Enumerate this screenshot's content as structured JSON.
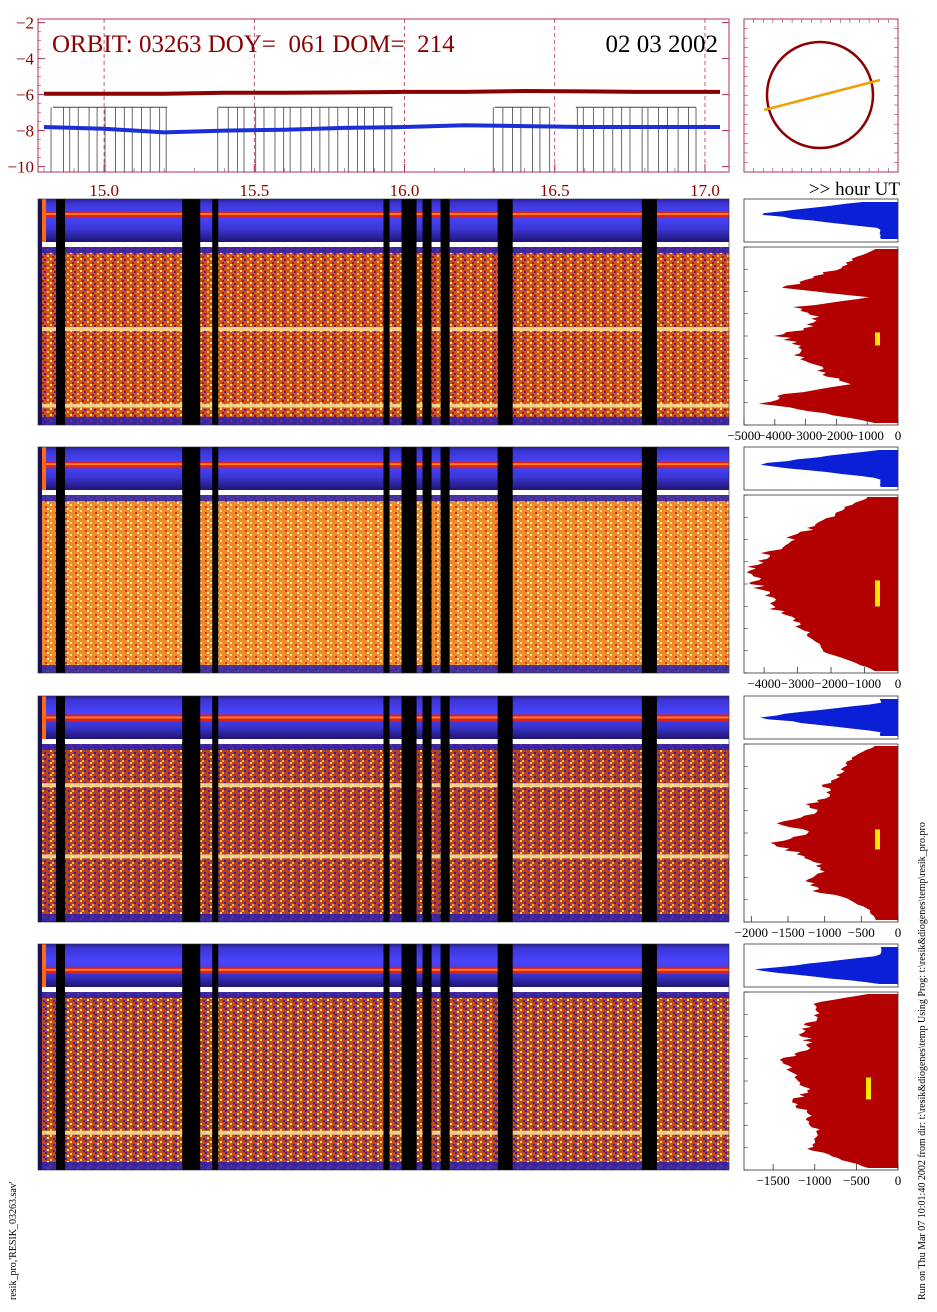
{
  "header": {
    "orbit_label": "ORBIT:",
    "orbit": "03263",
    "doy_label": "DOY=",
    "doy": "061",
    "dom_label": "DOM=",
    "dom": "214",
    "title_line": "ORBIT: 03263 DOY=  061 DOM=  214",
    "date": "02 03 2002",
    "time_axis_label": ">> hour UT"
  },
  "footer": {
    "left": "resik_pro,'RESIK_03263.sav'",
    "right": "Run on Thu Mar 07 10:01:40 2002  from dir: t:\\resik&diogenes\\temp  Using Prog: t:\\resik&diogenes\\temp\\resik_pro.pro"
  },
  "colors": {
    "axis_frame": "#b03060",
    "dark_red_trace": "#8b0000",
    "blue_trace": "#1a2fd8",
    "gray_trace": "#444444",
    "histogram_red": "#b30000",
    "histogram_blue": "#0a1fd6",
    "marker_yellow": "#ffe600",
    "orbit_line": "#f0a000"
  },
  "chart_data": [
    {
      "type": "line",
      "name": "orbit-overview",
      "x": [
        14.8,
        15.0,
        15.2,
        15.4,
        15.6,
        15.8,
        16.0,
        16.2,
        16.4,
        16.6,
        16.8,
        17.0,
        17.05
      ],
      "series": [
        {
          "color": "#8b0000",
          "values": [
            -5.95,
            -5.95,
            -5.95,
            -5.9,
            -5.9,
            -5.88,
            -5.85,
            -5.85,
            -5.8,
            -5.82,
            -5.85,
            -5.85,
            -5.85
          ]
        },
        {
          "color": "#1a2fd8",
          "values": [
            -7.8,
            -7.9,
            -8.1,
            -8.0,
            -7.95,
            -7.85,
            -7.8,
            -7.7,
            -7.75,
            -7.8,
            -7.8,
            -7.8,
            -7.8
          ]
        }
      ],
      "gray_activity_segments": [
        [
          14.83,
          15.21
        ],
        [
          15.38,
          15.96
        ],
        [
          16.3,
          16.48
        ],
        [
          16.57,
          16.97
        ]
      ],
      "xlim": [
        14.78,
        17.08
      ],
      "ylim": [
        -10.3,
        -1.8
      ],
      "yticks": [
        -2,
        -4,
        -6,
        -8,
        -10
      ],
      "xticks": [
        15.0,
        15.5,
        16.0,
        16.5,
        17.0
      ],
      "grid_x": [
        15.0,
        15.5,
        16.0,
        16.5,
        17.0
      ]
    },
    {
      "type": "heatmap",
      "name": "spectrogram-bands",
      "bands": 4,
      "data_gaps_hours": [
        [
          14.84,
          14.87
        ],
        [
          15.26,
          15.32
        ],
        [
          15.36,
          15.38
        ],
        [
          15.93,
          15.95
        ],
        [
          15.99,
          16.04
        ],
        [
          16.06,
          16.09
        ],
        [
          16.12,
          16.15
        ],
        [
          16.31,
          16.36
        ],
        [
          16.79,
          16.84
        ]
      ]
    },
    {
      "type": "area",
      "name": "band-1-histogram",
      "xlim": [
        -5000,
        0
      ],
      "xticks": [
        -5000,
        -4000,
        -3000,
        -2000,
        -1000,
        0
      ],
      "tick_labels": [
        "−5000",
        "−4000",
        "−3000",
        "−2000",
        "−1000",
        "0"
      ]
    },
    {
      "type": "area",
      "name": "band-2-histogram",
      "xlim": [
        -4600,
        0
      ],
      "xticks": [
        -4000,
        -3000,
        -2000,
        -1000,
        0
      ],
      "tick_labels": [
        "−4000",
        "−3000",
        "−2000",
        "−1000",
        "0"
      ]
    },
    {
      "type": "area",
      "name": "band-3-histogram",
      "xlim": [
        -2100,
        0
      ],
      "xticks": [
        -2000,
        -1500,
        -1000,
        -500,
        0
      ],
      "tick_labels": [
        "−2000",
        "−1500",
        "−1000",
        "−500",
        "0"
      ]
    },
    {
      "type": "area",
      "name": "band-4-histogram",
      "xlim": [
        -1850,
        0
      ],
      "xticks": [
        -1500,
        -1000,
        -500,
        0
      ],
      "tick_labels": [
        "−1500",
        "−1000",
        "−500",
        "0"
      ]
    }
  ]
}
